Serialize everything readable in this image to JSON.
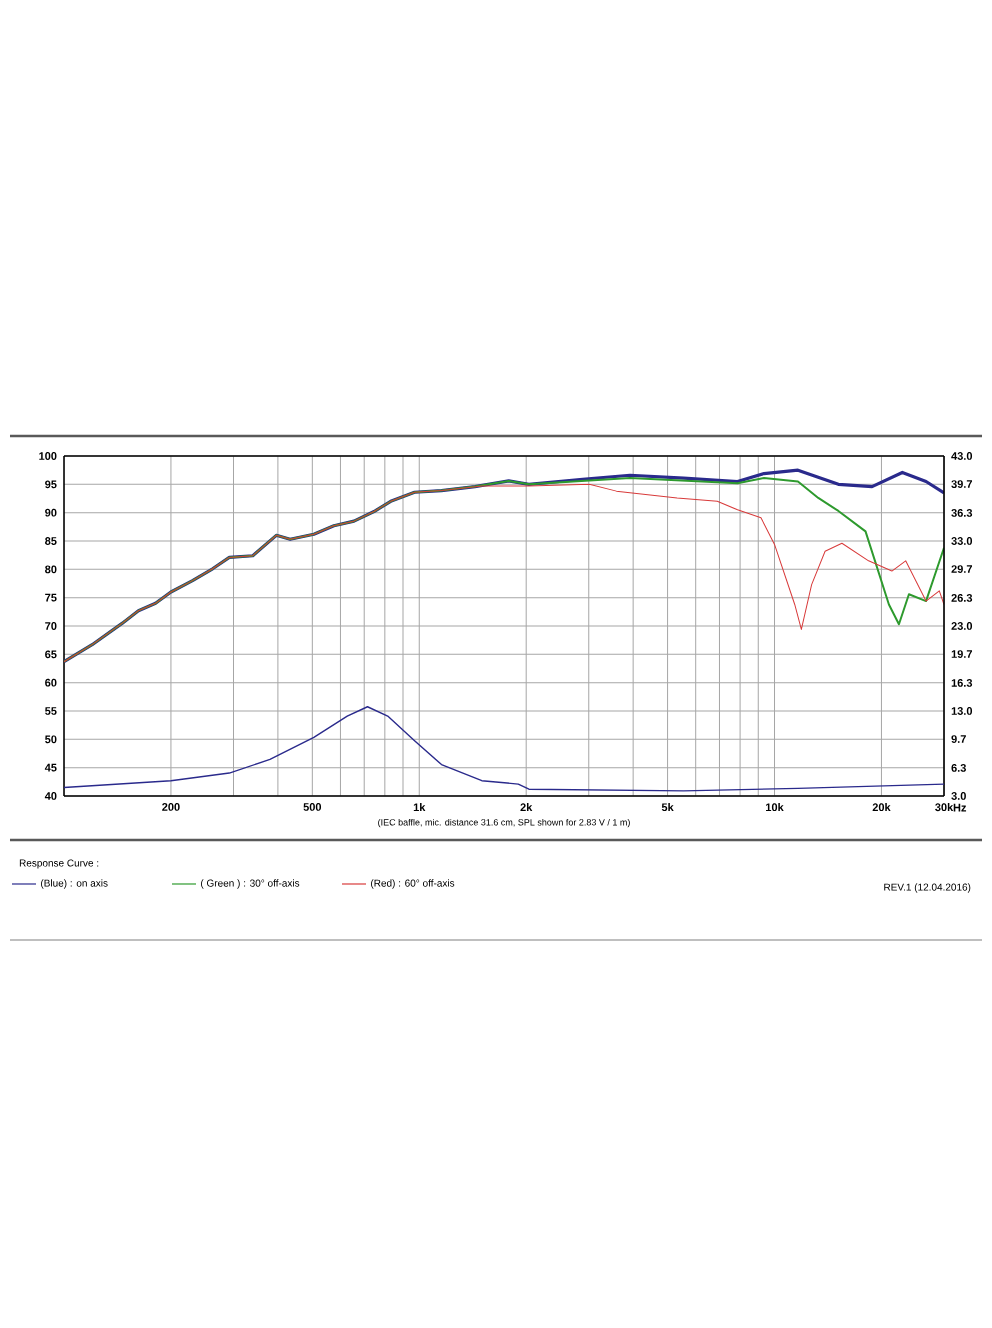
{
  "chart_data": {
    "type": "line",
    "log": "x",
    "grid": true,
    "legend": "bottom",
    "legend_title": "Response Curve :",
    "xlabel": "(IEC baffle, mic. distance 31.6 cm, SPL shown for 2.83 V / 1 m)",
    "annotations": [
      "REV.1 (12.04.2016)",
      "Hz"
    ],
    "xlim": [
      100,
      30000
    ],
    "xticks": [
      {
        "value": 200,
        "label": "200"
      },
      {
        "value": 300,
        "label": null
      },
      {
        "value": 400,
        "label": null
      },
      {
        "value": 500,
        "label": "500"
      },
      {
        "value": 600,
        "label": null
      },
      {
        "value": 700,
        "label": null
      },
      {
        "value": 800,
        "label": null
      },
      {
        "value": 900,
        "label": null
      },
      {
        "value": 1000,
        "label": "1k"
      },
      {
        "value": 2000,
        "label": "2k"
      },
      {
        "value": 3000,
        "label": null
      },
      {
        "value": 4000,
        "label": null
      },
      {
        "value": 5000,
        "label": "5k"
      },
      {
        "value": 6000,
        "label": null
      },
      {
        "value": 7000,
        "label": null
      },
      {
        "value": 8000,
        "label": null
      },
      {
        "value": 9000,
        "label": null
      },
      {
        "value": 10000,
        "label": "10k"
      },
      {
        "value": 20000,
        "label": "20k"
      },
      {
        "value": 30000,
        "label": "30k"
      }
    ],
    "ylim": [
      40,
      100
    ],
    "yticks": [
      40,
      45,
      50,
      55,
      60,
      65,
      70,
      75,
      80,
      85,
      90,
      95,
      100
    ],
    "y2lim": [
      3,
      43
    ],
    "y2ticks": [
      {
        "value": 3,
        "label": "3.0"
      },
      {
        "value": 6.3,
        "label": "6.3"
      },
      {
        "value": 9.7,
        "label": "9.7"
      },
      {
        "value": 13,
        "label": "13.0"
      },
      {
        "value": 16.3,
        "label": "16.3"
      },
      {
        "value": 19.7,
        "label": "19.7"
      },
      {
        "value": 23,
        "label": "23.0"
      },
      {
        "value": 26.3,
        "label": "26.3"
      },
      {
        "value": 29.7,
        "label": "29.7"
      },
      {
        "value": 33,
        "label": "33.0"
      },
      {
        "value": 36.3,
        "label": "36.3"
      },
      {
        "value": 39.7,
        "label": "39.7"
      },
      {
        "value": 43,
        "label": "43.0"
      }
    ],
    "series": [
      {
        "name": "(Blue) : on axis",
        "color": "#2a2a8c",
        "x": [
          100,
          120,
          146,
          162,
          181,
          200,
          230,
          262,
          292,
          340,
          396,
          433,
          505,
          575,
          655,
          746,
          831,
          970,
          1155,
          1435,
          1786,
          2036,
          2885,
          3920,
          5550,
          7870,
          9340,
          11640,
          15130,
          18820,
          22900,
          26700,
          30000
        ],
        "values": [
          63.7,
          66.7,
          70.5,
          72.7,
          74,
          76,
          78,
          80.1,
          82.1,
          82.4,
          86,
          85.3,
          86.2,
          87.7,
          88.5,
          90.2,
          92,
          93.6,
          93.9,
          94.6,
          95.6,
          95,
          95.9,
          96.6,
          96.1,
          95.5,
          96.9,
          97.5,
          95,
          94.6,
          97.1,
          95.5,
          93.5
        ]
      },
      {
        "name": "( Green ) : 30° off-axis",
        "color": "#2e9a2e",
        "x": [
          100,
          120,
          146,
          162,
          181,
          200,
          230,
          262,
          292,
          340,
          396,
          433,
          505,
          575,
          655,
          746,
          831,
          970,
          1155,
          1435,
          1786,
          2036,
          3920,
          7870,
          9340,
          11640,
          13280,
          15130,
          18040,
          20990,
          22400,
          23900,
          26700,
          30000
        ],
        "values": [
          63.7,
          66.7,
          70.5,
          72.7,
          74,
          76,
          78,
          80.1,
          82.1,
          82.4,
          86,
          85.3,
          86.2,
          87.7,
          88.5,
          90.2,
          92,
          93.6,
          93.9,
          94.6,
          95.6,
          95,
          96.1,
          95.2,
          96.1,
          95.5,
          92.6,
          90.3,
          86.7,
          73.8,
          70.3,
          75.6,
          74.4,
          83.8
        ]
      },
      {
        "name": "(Red) : 60° off-axis",
        "color": "#d83a3a",
        "x": [
          100,
          120,
          146,
          162,
          181,
          200,
          230,
          262,
          292,
          340,
          396,
          433,
          505,
          575,
          655,
          746,
          831,
          970,
          1155,
          1500,
          2036,
          3010,
          3590,
          5320,
          6900,
          7870,
          9160,
          10000,
          11400,
          11900,
          12720,
          13880,
          15480,
          18400,
          21400,
          23400,
          26700,
          29100,
          30000
        ],
        "values": [
          63.7,
          66.7,
          70.5,
          72.7,
          74,
          76,
          78,
          80.1,
          82.1,
          82.4,
          86,
          85.3,
          86.2,
          87.7,
          88.5,
          90.2,
          92,
          93.6,
          93.9,
          94.7,
          94.7,
          95,
          93.8,
          92.6,
          92,
          90.5,
          89.1,
          84.4,
          73.8,
          69.4,
          77.3,
          83.2,
          84.6,
          81.5,
          79.7,
          81.5,
          74.4,
          76.2,
          73.8
        ]
      },
      {
        "color": "#2a2a8c",
        "axis": "y2",
        "x": [
          100,
          200,
          292,
          380,
          505,
          627,
          715,
          815,
          970,
          1155,
          1500,
          1900,
          2036,
          5550,
          11640,
          30000
        ],
        "values": [
          4.0,
          4.8,
          5.7,
          7.3,
          9.9,
          12.4,
          13.5,
          12.4,
          9.5,
          6.7,
          4.8,
          4.4,
          3.8,
          3.6,
          3.9,
          4.4
        ]
      }
    ]
  }
}
